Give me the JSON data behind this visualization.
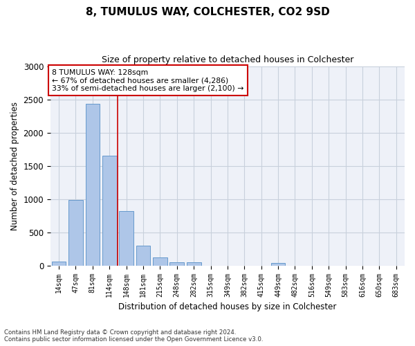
{
  "title": "8, TUMULUS WAY, COLCHESTER, CO2 9SD",
  "subtitle": "Size of property relative to detached houses in Colchester",
  "xlabel": "Distribution of detached houses by size in Colchester",
  "ylabel": "Number of detached properties",
  "categories": [
    "14sqm",
    "47sqm",
    "81sqm",
    "114sqm",
    "148sqm",
    "181sqm",
    "215sqm",
    "248sqm",
    "282sqm",
    "315sqm",
    "349sqm",
    "382sqm",
    "415sqm",
    "449sqm",
    "482sqm",
    "516sqm",
    "549sqm",
    "583sqm",
    "616sqm",
    "650sqm",
    "683sqm"
  ],
  "values": [
    60,
    990,
    2430,
    1650,
    820,
    295,
    120,
    50,
    45,
    0,
    0,
    0,
    0,
    35,
    0,
    0,
    0,
    0,
    0,
    0,
    0
  ],
  "bar_color": "#aec6e8",
  "bar_edgecolor": "#6699cc",
  "grid_color": "#c8d0dc",
  "vline_x_index": 3.5,
  "vline_color": "#cc0000",
  "annotation_text": "8 TUMULUS WAY: 128sqm\n← 67% of detached houses are smaller (4,286)\n33% of semi-detached houses are larger (2,100) →",
  "annotation_box_color": "#ffffff",
  "annotation_box_edgecolor": "#cc0000",
  "ylim": [
    0,
    3000
  ],
  "yticks": [
    0,
    500,
    1000,
    1500,
    2000,
    2500,
    3000
  ],
  "footnote": "Contains HM Land Registry data © Crown copyright and database right 2024.\nContains public sector information licensed under the Open Government Licence v3.0.",
  "bg_color": "#eef1f8"
}
